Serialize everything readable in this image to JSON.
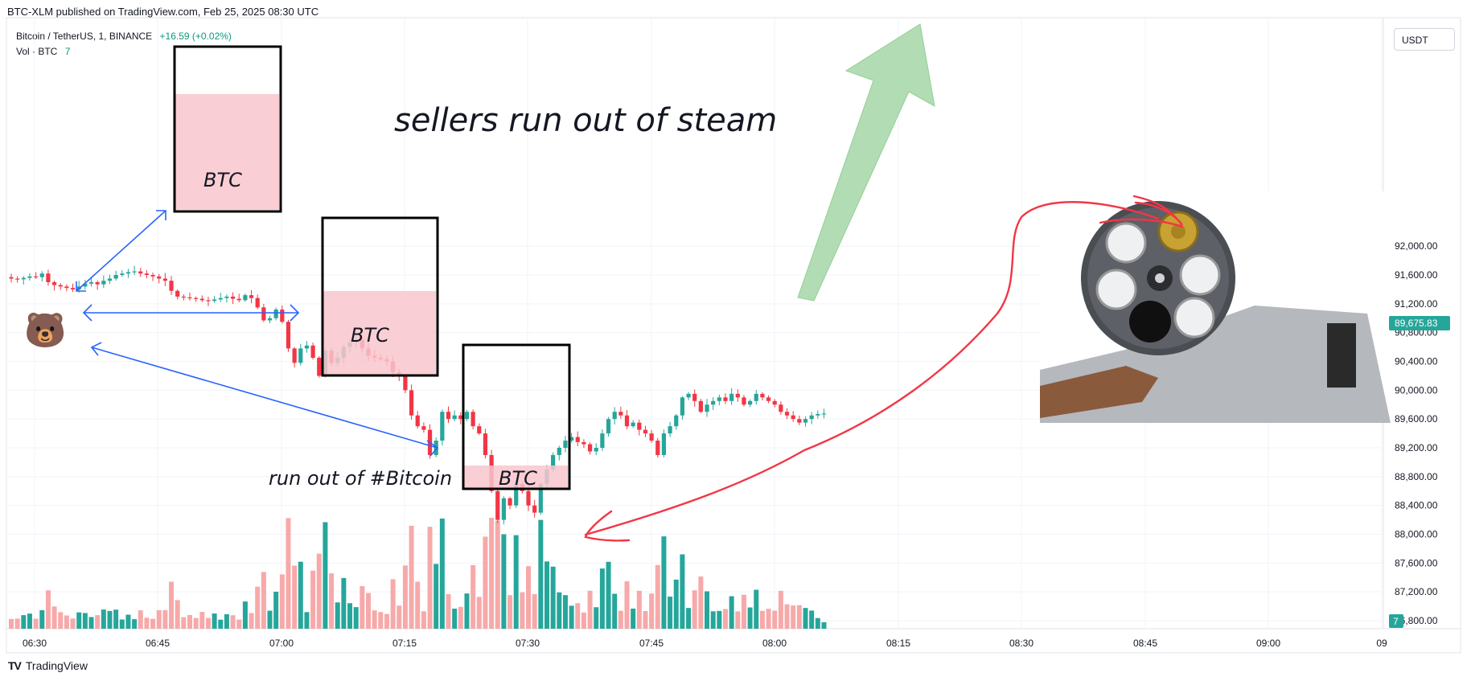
{
  "header": {
    "caption": "BTC-XLM published on TradingView.com, Feb 25, 2025 08:30 UTC",
    "symbol": "Bitcoin / TetherUS, 1, BINANCE",
    "change": "+16.59 (+0.02%)",
    "vol_label": "Vol · BTC",
    "vol_value": "7",
    "currency": "USDT"
  },
  "footer": {
    "brand": "TradingView",
    "logo_text": "TV"
  },
  "annotations": {
    "headline": "sellers run out of steam",
    "box_label": "BTC",
    "run_out_label": "run out of #Bitcoin",
    "bear": "🐻"
  },
  "colors": {
    "up": "#26a69a",
    "down": "#f23645",
    "vol_up": "#26a69a",
    "vol_down": "#f7a9a9",
    "last_price_bg": "#26a69a",
    "arrow_blue": "#2962ff",
    "red_curve": "#f23645",
    "green_arrow": "#a5d6a7"
  },
  "chart_data": {
    "type": "candlestick",
    "y_ticks": [
      "86,800.00",
      "87,200.00",
      "87,600.00",
      "88,000.00",
      "88,400.00",
      "88,800.00",
      "89,200.00",
      "89,600.00",
      "90,000.00",
      "90,400.00",
      "90,800.00",
      "91,200.00",
      "91,600.00",
      "92,000.00"
    ],
    "x_ticks": [
      "06:30",
      "06:45",
      "07:00",
      "07:15",
      "07:30",
      "07:45",
      "08:00",
      "08:15",
      "08:30",
      "08:45",
      "09:00",
      "09"
    ],
    "last_price": "89,675.83",
    "last_volume": "7",
    "ylim": [
      86600,
      92400
    ],
    "close": [
      91550,
      91540,
      91560,
      91580,
      91570,
      91620,
      91500,
      91460,
      91440,
      91420,
      91400,
      91440,
      91480,
      91500,
      91470,
      91520,
      91550,
      91600,
      91620,
      91640,
      91650,
      91620,
      91600,
      91580,
      91550,
      91520,
      91380,
      91300,
      91290,
      91280,
      91270,
      91250,
      91240,
      91260,
      91280,
      91300,
      91270,
      91250,
      91320,
      91280,
      91150,
      90970,
      91000,
      91120,
      90950,
      90580,
      90380,
      90580,
      90620,
      90450,
      90200,
      90550,
      90380,
      90450,
      90600,
      90660,
      90700,
      90580,
      90480,
      90450,
      90430,
      90400,
      90250,
      90200,
      90000,
      89650,
      89500,
      89450,
      89100,
      89300,
      89700,
      89600,
      89650,
      89600,
      89700,
      89500,
      89400,
      89100,
      88600,
      88200,
      88500,
      88400,
      88700,
      88600,
      88400,
      88300,
      88700,
      88900,
      89100,
      89200,
      89300,
      89350,
      89280,
      89250,
      89150,
      89200,
      89400,
      89600,
      89700,
      89650,
      89500,
      89550,
      89450,
      89400,
      89300,
      89100,
      89400,
      89500,
      89650,
      89900,
      89950,
      89850,
      89700,
      89800,
      89850,
      89900,
      89850,
      89950,
      89900,
      89800,
      89850,
      89950,
      89900,
      89850,
      89800,
      89700,
      89650,
      89600,
      89550,
      89600,
      89650,
      89670,
      89676
    ]
  }
}
